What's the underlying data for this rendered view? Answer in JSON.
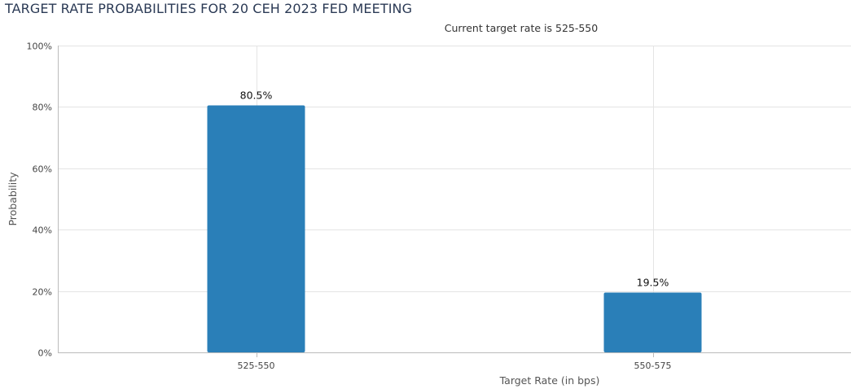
{
  "title": "TARGET RATE PROBABILITIES FOR 20 CEH 2023 FED MEETING",
  "subtitle": "Current target rate is 525-550",
  "colors": {
    "bar": "#2a7fb8",
    "grid": "#e4e4e4",
    "axis": "#bbbbbb"
  },
  "chart_data": {
    "type": "bar",
    "title": "TARGET RATE PROBABILITIES FOR 20 CEH 2023 FED MEETING",
    "subtitle": "Current target rate is 525-550",
    "categories": [
      "525-550",
      "550-575"
    ],
    "values": [
      80.5,
      19.5
    ],
    "data_labels": [
      "80.5%",
      "19.5%"
    ],
    "xlabel": "Target Rate (in bps)",
    "ylabel": "Probability",
    "ylim": [
      0,
      100
    ],
    "yticks": [
      0,
      20,
      40,
      60,
      80,
      100
    ],
    "ytick_labels": [
      "0%",
      "20%",
      "40%",
      "60%",
      "80%",
      "100%"
    ],
    "grid": true
  }
}
